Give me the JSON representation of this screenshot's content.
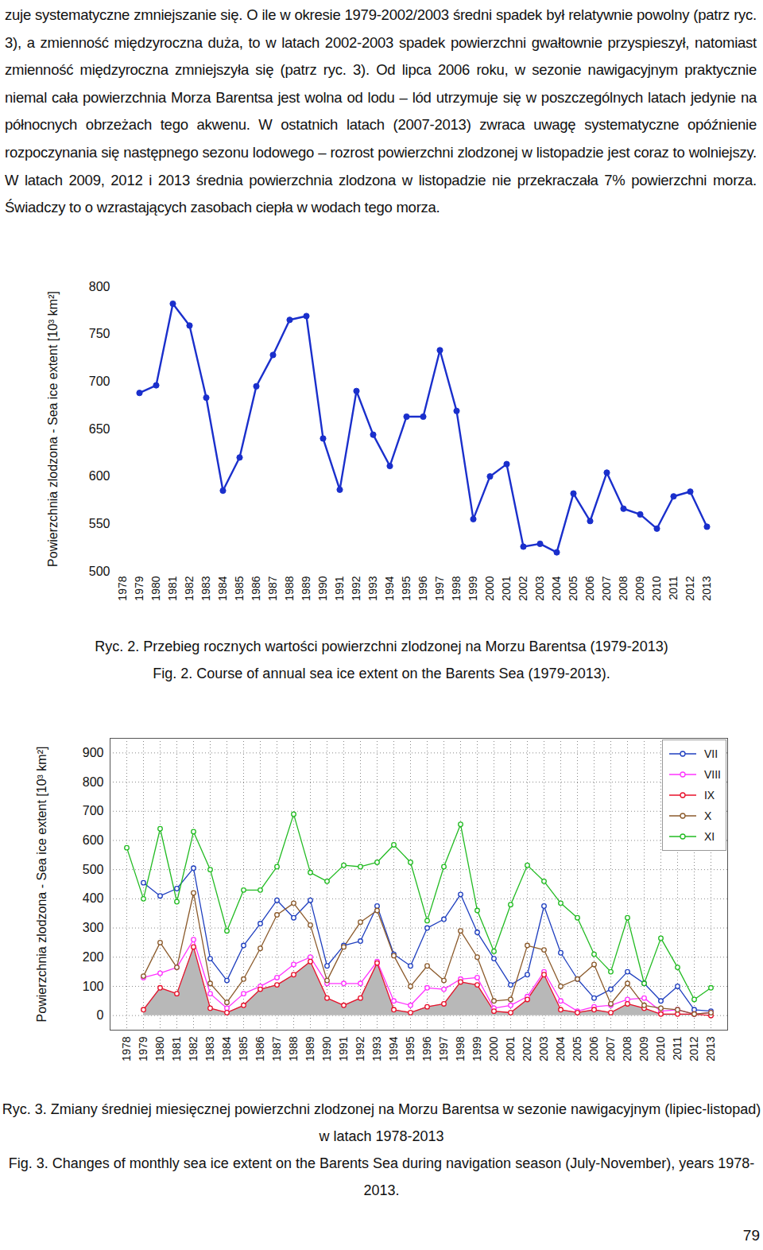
{
  "page": {
    "paragraph": "zuje systematyczne zmniejszanie się. O ile w okresie 1979-2002/2003 średni spadek był relatywnie powolny (patrz ryc. 3), a zmienność międzyroczna duża, to w latach 2002-2003 spadek powierzchni gwałtownie przyspieszył, natomiast zmienność międzyroczna zmniejszyła się (patrz ryc. 3). Od lipca 2006 roku, w sezonie nawigacyjnym praktycznie niemal cała powierzchnia Morza Barentsa jest wolna od lodu – lód utrzymuje się w poszczególnych latach jedynie na północnych obrzeżach tego akwenu. W ostatnich latach (2007-2013) zwraca uwagę systematyczne opóźnienie rozpoczynania się następnego sezonu lodowego – rozrost powierzchni zlodzonej w listopadzie jest coraz to wolniejszy. W latach 2009, 2012 i 2013 średnia powierzchnia zlodzona w listopadzie nie przekraczała 7% powierzchni morza. Świadczy to o wzrastających zasobach ciepła w wodach tego morza.",
    "captions": [
      [
        "Ryc. 2. Przebieg rocznych wartości powierzchni zlodzonej na Morzu Barentsa (1979-2013)",
        "Fig. 2. Course of annual sea ice extent on the Barents Sea (1979-2013)."
      ],
      [
        "Ryc. 3. Zmiany średniej miesięcznej powierzchni zlodzonej na Morzu Barentsa w sezonie nawigacyjnym (lipiec-listopad) w latach 1978-2013",
        "Fig. 3. Changes of monthly sea ice extent on the Barents Sea during navigation season (July-November), years 1978-2013."
      ]
    ],
    "page_number": 79
  },
  "chart_data": [
    {
      "type": "line",
      "y_label": "Powierzchnia zlodzona - Sea ice extent [10³ km²]",
      "categories": [
        "1978",
        "1979",
        "1980",
        "1981",
        "1982",
        "1983",
        "1984",
        "1985",
        "1986",
        "1987",
        "1988",
        "1989",
        "1990",
        "1991",
        "1992",
        "1993",
        "1994",
        "1995",
        "1996",
        "1997",
        "1998",
        "1999",
        "2000",
        "2001",
        "2002",
        "2003",
        "2004",
        "2005",
        "2006",
        "2007",
        "2008",
        "2009",
        "2010",
        "2011",
        "2012",
        "2013"
      ],
      "values": [
        null,
        688,
        696,
        782,
        759,
        683,
        585,
        620,
        695,
        728,
        765,
        769,
        640,
        586,
        690,
        644,
        611,
        663,
        663,
        733,
        669,
        555,
        600,
        613,
        526,
        529,
        520,
        582,
        553,
        604,
        566,
        560,
        545,
        579,
        584,
        547
      ],
      "color": "#1a2fcc",
      "marker": "circle",
      "ylim": [
        500,
        800
      ],
      "yticks": [
        500,
        550,
        600,
        650,
        700,
        750,
        800
      ],
      "grid": false
    },
    {
      "type": "line",
      "y_label": "Powierzchnia zlodzona - Sea ice extent [10³ km²]",
      "categories": [
        "1978",
        "1979",
        "1980",
        "1981",
        "1982",
        "1983",
        "1984",
        "1985",
        "1986",
        "1987",
        "1988",
        "1989",
        "1990",
        "1991",
        "1992",
        "1993",
        "1994",
        "1995",
        "1996",
        "1997",
        "1998",
        "1999",
        "2000",
        "2001",
        "2002",
        "2003",
        "2004",
        "2005",
        "2006",
        "2007",
        "2008",
        "2009",
        "2010",
        "2011",
        "2012",
        "2013"
      ],
      "series": [
        {
          "name": "VII",
          "color": "#1f3fbf",
          "marker": "open_circle",
          "values": [
            null,
            455,
            410,
            435,
            505,
            195,
            120,
            240,
            315,
            395,
            335,
            395,
            170,
            240,
            255,
            375,
            210,
            170,
            300,
            330,
            415,
            285,
            195,
            105,
            140,
            375,
            215,
            125,
            60,
            90,
            150,
            110,
            50,
            100,
            20,
            15
          ]
        },
        {
          "name": "VIII",
          "color": "#ff33ff",
          "marker": "open_circle",
          "values": [
            null,
            130,
            145,
            165,
            260,
            75,
            25,
            75,
            100,
            130,
            175,
            200,
            110,
            110,
            110,
            185,
            50,
            35,
            95,
            90,
            125,
            130,
            25,
            35,
            65,
            150,
            50,
            15,
            30,
            35,
            55,
            60,
            15,
            20,
            5,
            10
          ]
        },
        {
          "name": "IX",
          "color": "#e8102a",
          "marker": "open_circle",
          "type": "area",
          "values": [
            null,
            20,
            95,
            75,
            235,
            25,
            10,
            35,
            90,
            105,
            140,
            185,
            60,
            35,
            60,
            180,
            20,
            10,
            30,
            40,
            115,
            105,
            15,
            10,
            55,
            140,
            20,
            10,
            20,
            10,
            40,
            25,
            5,
            5,
            5,
            0
          ]
        },
        {
          "name": "X",
          "color": "#8b5a2b",
          "marker": "open_circle",
          "values": [
            null,
            135,
            250,
            165,
            420,
            110,
            45,
            125,
            230,
            345,
            385,
            310,
            120,
            235,
            320,
            360,
            205,
            100,
            170,
            120,
            290,
            200,
            50,
            55,
            240,
            225,
            100,
            125,
            175,
            40,
            110,
            35,
            25,
            20,
            5,
            10
          ]
        },
        {
          "name": "XI",
          "color": "#22bb22",
          "marker": "open_circle",
          "values": [
            575,
            400,
            640,
            390,
            630,
            500,
            290,
            430,
            430,
            510,
            690,
            490,
            460,
            515,
            510,
            525,
            585,
            525,
            325,
            510,
            655,
            360,
            220,
            380,
            515,
            460,
            385,
            335,
            210,
            150,
            335,
            110,
            265,
            165,
            55,
            95
          ]
        }
      ],
      "ylim": [
        -50,
        950
      ],
      "yticks": [
        0,
        100,
        200,
        300,
        400,
        500,
        600,
        700,
        800,
        900
      ],
      "grid": true,
      "legend": "top-right"
    }
  ]
}
